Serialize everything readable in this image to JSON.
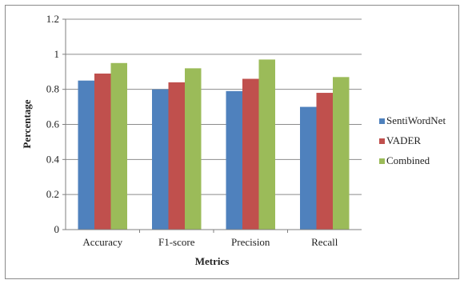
{
  "chart_data": {
    "type": "bar",
    "title": "",
    "xlabel": "Metrics",
    "ylabel": "Percentage",
    "categories": [
      "Accuracy",
      "F1-score",
      "Precision",
      "Recall"
    ],
    "series": [
      {
        "name": "SentiWordNet",
        "values": [
          0.85,
          0.8,
          0.79,
          0.7
        ],
        "color": "#4f81bd"
      },
      {
        "name": "VADER",
        "values": [
          0.89,
          0.84,
          0.86,
          0.78
        ],
        "color": "#c0504d"
      },
      {
        "name": "Combined",
        "values": [
          0.95,
          0.92,
          0.97,
          0.87
        ],
        "color": "#9bbb59"
      }
    ],
    "ylim": [
      0,
      1.2
    ],
    "yticks": [
      0,
      0.2,
      0.4,
      0.6,
      0.8,
      1,
      1.2
    ],
    "ytick_labels": [
      "0",
      "0.2",
      "0.4",
      "0.6",
      "0.8",
      "1",
      "1.2"
    ],
    "grid": true,
    "legend_position": "right"
  }
}
